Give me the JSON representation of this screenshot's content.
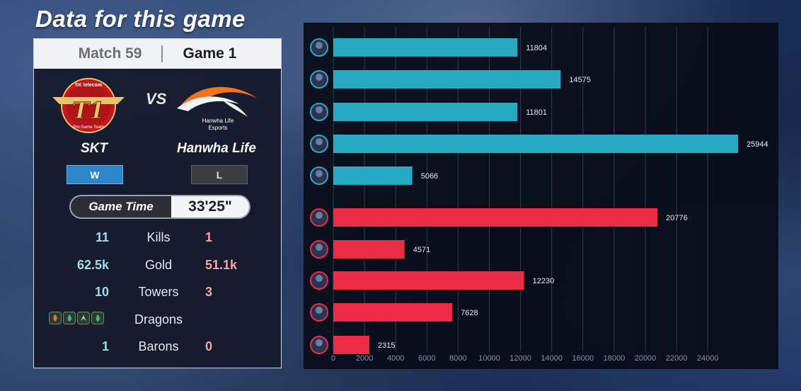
{
  "headline": "Data for this game",
  "match": {
    "match_label": "Match 59",
    "game_label": "Game 1"
  },
  "teams": {
    "left": {
      "name": "SKT",
      "result": "W",
      "logo_text_top": "SK telecom",
      "logo_text_bottom": "Pro Game Team",
      "logo_main": "T1"
    },
    "vs": "VS",
    "right": {
      "name": "Hanwha Life",
      "result": "L",
      "logo_text": "Hanwha Life",
      "logo_text2": "Esports"
    }
  },
  "game_time": {
    "label": "Game Time",
    "value": "33'25\""
  },
  "stats": [
    {
      "left": "11",
      "label": "Kills",
      "right": "1"
    },
    {
      "left": "62.5k",
      "label": "Gold",
      "right": "51.1k"
    },
    {
      "left": "10",
      "label": "Towers",
      "right": "3"
    },
    {
      "left": "",
      "label": "Dragons",
      "right": ""
    },
    {
      "left": "1",
      "label": "Barons",
      "right": "0"
    }
  ],
  "dragons": {
    "left_icons": [
      "infernal-dragon-icon",
      "ocean-dragon-icon",
      "cloud-dragon-icon",
      "ocean-dragon-icon"
    ],
    "colors": [
      "#e07a2e",
      "#3fb59a",
      "#9fc8c4",
      "#3fb59a"
    ]
  },
  "colors": {
    "blue_bar": "#27a8c3",
    "red_bar": "#ec2b45",
    "blue_text": "#9edbeb",
    "red_text": "#f3a6a6"
  },
  "chart_data": {
    "type": "bar",
    "orientation": "horizontal",
    "values": [
      11804,
      14575,
      11801,
      25944,
      5066,
      20776,
      4571,
      12230,
      7628,
      2315
    ],
    "groups": [
      "blue",
      "blue",
      "blue",
      "blue",
      "blue",
      "red",
      "red",
      "red",
      "red",
      "red"
    ],
    "xlim": [
      0,
      26000
    ],
    "xticks": [
      0,
      2000,
      4000,
      6000,
      8000,
      10000,
      12000,
      14000,
      16000,
      18000,
      20000,
      22000,
      24000
    ],
    "grid": true
  }
}
